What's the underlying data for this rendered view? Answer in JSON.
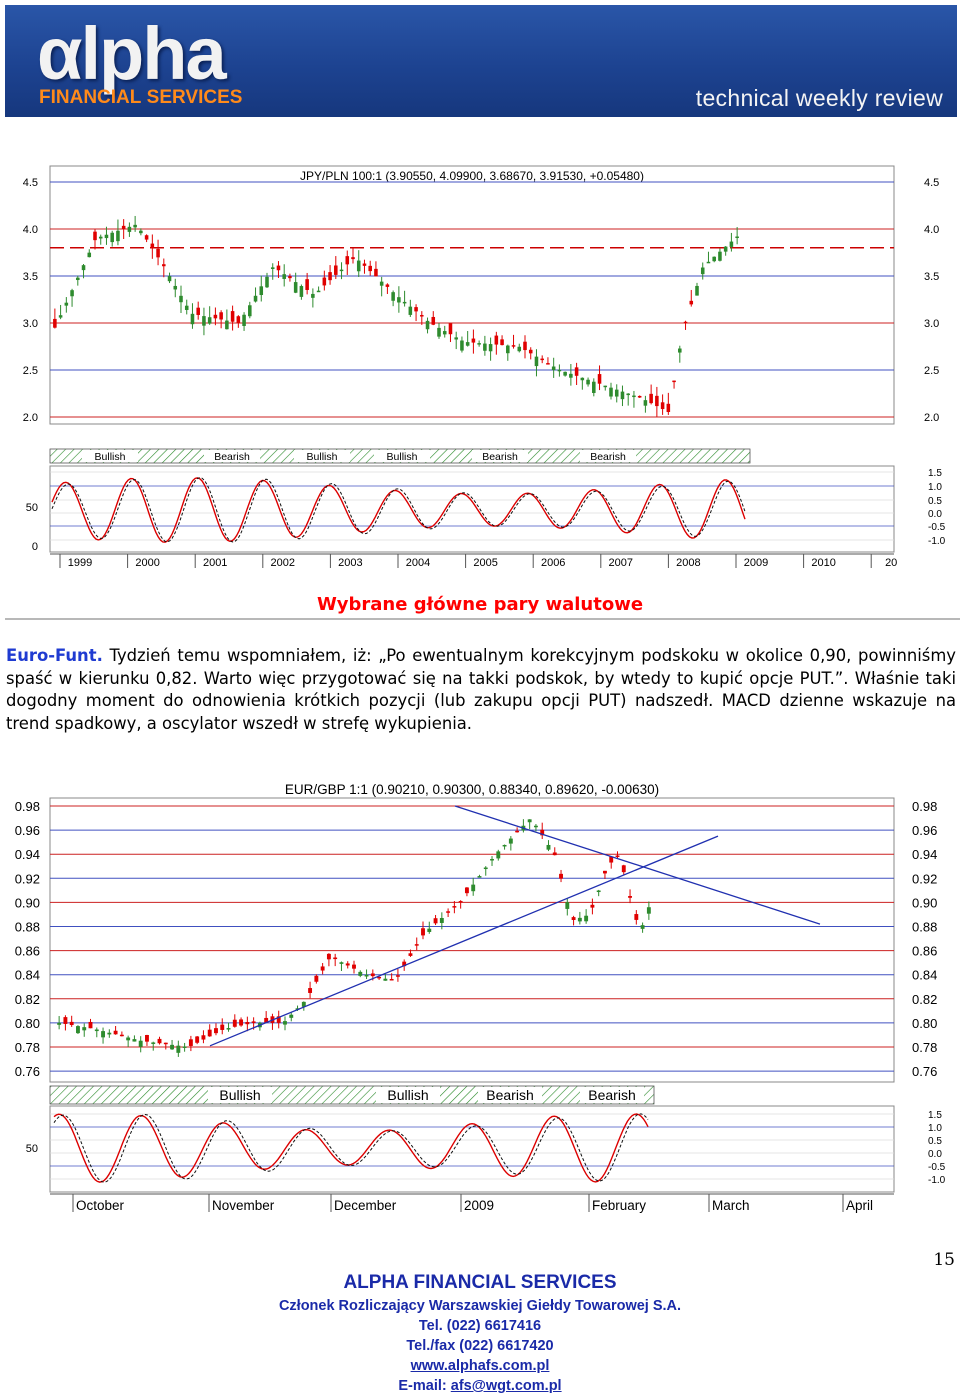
{
  "header": {
    "logo_text": "αlpha",
    "logo_sub_1": "FINANCIAL",
    "logo_sub_2": "SERVICES",
    "tagline": "technical weekly review"
  },
  "charts": [
    {
      "title": "JPY/PLN 100:1 (3.90550, 4.09900, 3.68670, 3.91530, +0.05480)",
      "price_ticks": [
        "4.5",
        "4.0",
        "3.5",
        "3.0",
        "2.5",
        "2.0"
      ],
      "osc_ticks_left": [
        "50",
        "0"
      ],
      "osc_ticks_right": [
        "1.5",
        "1.0",
        "0.5",
        "0.0",
        "-0.5",
        "-1.0"
      ],
      "signals": [
        "Bullish",
        "Bearish",
        "Bullish",
        "Bullish",
        "Bearish",
        "Bearish"
      ],
      "x_labels": [
        "1999",
        "2000",
        "2001",
        "2002",
        "2003",
        "2004",
        "2005",
        "2006",
        "2007",
        "2008",
        "2009",
        "2010",
        "20"
      ]
    },
    {
      "title": "EUR/GBP 1:1 (0.90210, 0.90300, 0.88340, 0.89620, -0.00630)",
      "price_ticks": [
        "0.98",
        "0.96",
        "0.94",
        "0.92",
        "0.90",
        "0.88",
        "0.86",
        "0.84",
        "0.82",
        "0.80",
        "0.78",
        "0.76"
      ],
      "osc_ticks_left": [
        "50"
      ],
      "osc_ticks_right": [
        "1.5",
        "1.0",
        "0.5",
        "0.0",
        "-0.5",
        "-1.0"
      ],
      "signals": [
        "Bullish",
        "Bullish",
        "Bearish",
        "Bearish"
      ],
      "x_labels": [
        "October",
        "November",
        "December",
        "2009",
        "February",
        "March",
        "April"
      ]
    }
  ],
  "chart_data": [
    {
      "type": "candlestick",
      "title": "JPY/PLN 100:1 (3.90550, 4.09900, 3.68670, 3.91530, +0.05480)",
      "x": [
        "1999",
        "2000",
        "2001",
        "2002",
        "2003",
        "2004",
        "2005",
        "2006",
        "2007",
        "2008",
        "2009"
      ],
      "close_approx": [
        2.95,
        3.95,
        3.15,
        2.95,
        3.65,
        3.35,
        3.0,
        2.75,
        2.55,
        2.05,
        3.92
      ],
      "ylim": [
        1.9,
        4.6
      ],
      "horizontal_level": 3.8,
      "oscillator_right_range": [
        -1.0,
        1.5
      ]
    },
    {
      "type": "candlestick",
      "title": "EUR/GBP 1:1 (0.90210, 0.90300, 0.88340, 0.89620, -0.00630)",
      "x": [
        "October",
        "November",
        "December",
        "2009",
        "February",
        "March",
        "April"
      ],
      "close_approx": [
        0.795,
        0.78,
        0.83,
        0.95,
        0.89,
        0.88,
        0.896
      ],
      "ylim": [
        0.75,
        0.99
      ],
      "trendlines": [
        {
          "from": [
            "November",
            0.78
          ],
          "to": [
            "March",
            0.955
          ]
        },
        {
          "from": [
            "2009",
            0.98
          ],
          "to": [
            "April",
            0.882
          ]
        }
      ],
      "oscillator_right_range": [
        -1.0,
        1.5
      ]
    }
  ],
  "section_title": "Wybrane główne pary walutowe",
  "article": {
    "lead": "Euro-Funt.",
    "body": " Tydzień temu wspomniałem, iż: „Po ewentualnym korekcyjnym podskoku w okolice 0,90, powinniśmy spaść w kierunku 0,82. Warto więc przygotować się na takki podskok, by wtedy to kupić opcje PUT.”. Właśnie taki dogodny moment do odnowienia krótkich pozycji (lub zakupu opcji PUT) nadszedł. MACD dzienne wskazuje na trend spadkowy, a oscylator wszedł w strefę wykupienia."
  },
  "page_number": "15",
  "footer": {
    "company": "ALPHA FINANCIAL SERVICES",
    "member": "Członek Rozliczający Warszawskiej Giełdy Towarowej S.A.",
    "tel": "Tel. (022) 6617416",
    "fax": "Tel./fax (022) 6617420",
    "www": "www.alphafs.com.pl",
    "email_label": "E-mail: ",
    "email": "afs@wgt.com.pl"
  },
  "colors": {
    "banner": "#1d4391",
    "logo_sub": "#ff8a1a",
    "candle_up": "#2e8b2e",
    "candle_down": "#e00000",
    "grid_red": "#cc2020",
    "grid_blue": "#4050c0",
    "trendline": "#2030b0",
    "footer": "#1a2aa8",
    "section_title": "#ff0000"
  }
}
